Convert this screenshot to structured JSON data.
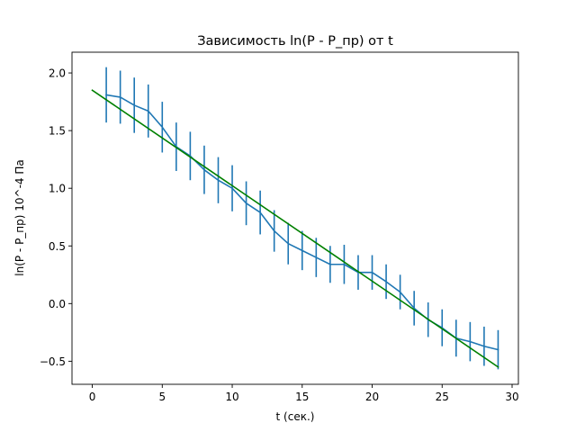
{
  "chart_data": {
    "type": "line",
    "title": "Зависимость ln(P - P_пр) от t",
    "xlabel": "t (сек.)",
    "ylabel": "ln(P - P_пр) 10^-4 Па",
    "xlim": [
      -1.45,
      30.45
    ],
    "ylim": [
      -0.7,
      2.18
    ],
    "xticks": [
      0,
      5,
      10,
      15,
      20,
      25,
      30
    ],
    "yticks": [
      -0.5,
      0.0,
      0.5,
      1.0,
      1.5,
      2.0
    ],
    "xtick_labels": [
      "0",
      "5",
      "10",
      "15",
      "20",
      "25",
      "30"
    ],
    "ytick_labels": [
      "−0.5",
      "0.0",
      "0.5",
      "1.0",
      "1.5",
      "2.0"
    ],
    "grid": false,
    "series": [
      {
        "kind": "errorbar",
        "color": "#1f77b4",
        "x": [
          1,
          2,
          3,
          4,
          5,
          6,
          7,
          8,
          9,
          10,
          11,
          12,
          13,
          14,
          15,
          16,
          17,
          18,
          19,
          20,
          21,
          22,
          23,
          24,
          25,
          26,
          27,
          28,
          29
        ],
        "y": [
          1.81,
          1.79,
          1.72,
          1.67,
          1.53,
          1.36,
          1.28,
          1.16,
          1.07,
          1.0,
          0.87,
          0.79,
          0.63,
          0.52,
          0.46,
          0.4,
          0.34,
          0.34,
          0.27,
          0.27,
          0.19,
          0.1,
          -0.04,
          -0.14,
          -0.21,
          -0.3,
          -0.33,
          -0.37,
          -0.4
        ],
        "yerr": [
          0.24,
          0.23,
          0.24,
          0.23,
          0.22,
          0.21,
          0.21,
          0.21,
          0.2,
          0.2,
          0.19,
          0.19,
          0.18,
          0.18,
          0.17,
          0.17,
          0.16,
          0.17,
          0.15,
          0.15,
          0.15,
          0.15,
          0.15,
          0.15,
          0.16,
          0.16,
          0.17,
          0.17,
          0.17
        ]
      },
      {
        "kind": "fit_line",
        "color": "#008000",
        "x": [
          0,
          29
        ],
        "y": [
          1.85,
          -0.55
        ]
      }
    ]
  }
}
